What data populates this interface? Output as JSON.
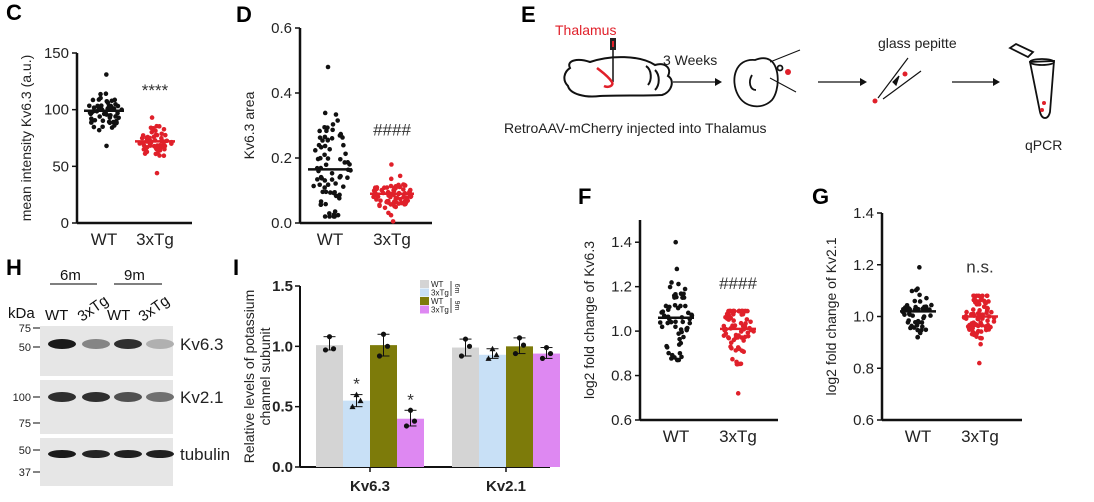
{
  "panels": {
    "C": {
      "label": "C"
    },
    "D": {
      "label": "D"
    },
    "E": {
      "label": "E"
    },
    "F": {
      "label": "F"
    },
    "G": {
      "label": "G"
    },
    "H": {
      "label": "H"
    },
    "I": {
      "label": "I"
    }
  },
  "schematic": {
    "injection_site": "Thalamus",
    "delay": "3 Weeks",
    "caption": "RetroAAV-mCherry injected into Thalamus",
    "pipette_label": "glass pepitte",
    "endpoint_label": "qPCR",
    "colors": {
      "accent": "#e0202a",
      "line": "#111111"
    }
  },
  "western_blot": {
    "unit_label": "kDa",
    "age_groups": [
      "6m",
      "9m"
    ],
    "lanes": [
      "WT",
      "3xTg",
      "WT",
      "3xTg"
    ],
    "blots": [
      {
        "name": "Kv6.3",
        "markers": [
          "75",
          "50"
        ],
        "intensity": [
          0.95,
          0.45,
          0.85,
          0.25
        ]
      },
      {
        "name": "Kv2.1",
        "markers": [
          "100",
          "75"
        ],
        "intensity": [
          0.85,
          0.85,
          0.7,
          0.55
        ]
      },
      {
        "name": "tubulin",
        "markers": [
          "50",
          "37"
        ],
        "intensity": [
          0.95,
          0.9,
          0.92,
          0.92
        ]
      }
    ]
  },
  "chart_data": [
    {
      "id": "C",
      "type": "scatter",
      "title": "",
      "xlabel": "",
      "ylabel": "mean intensity Kv6.3 (a.u.)",
      "categories": [
        "WT",
        "3xTg"
      ],
      "ylim": [
        0,
        150
      ],
      "yticks": [
        "0",
        "50",
        "100",
        "150"
      ],
      "annotation": "****",
      "series": [
        {
          "name": "WT",
          "color": "#111111",
          "mean": 99,
          "min": 68,
          "max": 131,
          "n": 60
        },
        {
          "name": "3xTg",
          "color": "#e0202a",
          "mean": 72,
          "min": 44,
          "max": 93,
          "n": 60
        }
      ]
    },
    {
      "id": "D",
      "type": "scatter",
      "ylabel": "Kv6.3 area",
      "categories": [
        "WT",
        "3xTg"
      ],
      "ylim": [
        0,
        0.6
      ],
      "yticks": [
        "0.0",
        "0.2",
        "0.4",
        "0.6"
      ],
      "annotation": "####",
      "series": [
        {
          "name": "WT",
          "color": "#111111",
          "mean": 0.165,
          "min": 0.02,
          "max": 0.48,
          "n": 75
        },
        {
          "name": "3xTg",
          "color": "#e0202a",
          "mean": 0.09,
          "min": 0.005,
          "max": 0.18,
          "n": 75
        }
      ]
    },
    {
      "id": "F",
      "type": "scatter",
      "ylabel": "log2 fold change of Kv6.3",
      "categories": [
        "WT",
        "3xTg"
      ],
      "ylim": [
        0.6,
        1.5
      ],
      "yticks": [
        "0.6",
        "0.8",
        "1.0",
        "1.2",
        "1.4"
      ],
      "annotation": "####",
      "series": [
        {
          "name": "WT",
          "color": "#111111",
          "mean": 1.06,
          "min": 0.87,
          "max": 1.4,
          "n": 60
        },
        {
          "name": "3xTg",
          "color": "#e0202a",
          "mean": 1.01,
          "min": 0.72,
          "max": 1.09,
          "n": 80
        }
      ]
    },
    {
      "id": "G",
      "type": "scatter",
      "ylabel": "log2 fold change of Kv2.1",
      "categories": [
        "WT",
        "3xTg"
      ],
      "ylim": [
        0.6,
        1.4
      ],
      "yticks": [
        "0.6",
        "0.8",
        "1.0",
        "1.2",
        "1.4"
      ],
      "annotation": "n.s.",
      "series": [
        {
          "name": "WT",
          "color": "#111111",
          "mean": 1.02,
          "min": 0.92,
          "max": 1.19,
          "n": 50
        },
        {
          "name": "3xTg",
          "color": "#e0202a",
          "mean": 1.0,
          "min": 0.82,
          "max": 1.08,
          "n": 80
        }
      ]
    },
    {
      "id": "I",
      "type": "bar",
      "ylabel": "Relative levels of potassium channel subunit",
      "ylabel_lines": [
        "Relative levels of potassium",
        "channel subunit"
      ],
      "categories": [
        "Kv6.3",
        "Kv2.1"
      ],
      "ylim": [
        0,
        1.5
      ],
      "yticks": [
        "0.0",
        "0.5",
        "1.0",
        "1.5"
      ],
      "legend": {
        "placement": "top-center",
        "groups": [
          {
            "age": "6m",
            "entries": [
              "WT",
              "3xTg"
            ]
          },
          {
            "age": "9m",
            "entries": [
              "WT",
              "3xTg"
            ]
          }
        ]
      },
      "series": [
        {
          "name": "WT 6m",
          "color": "#d4d4d4",
          "marker": "circle",
          "values": [
            1.01,
            0.99
          ],
          "points": [
            [
              0.97,
              0.98,
              1.08
            ],
            [
              0.92,
              1.0,
              1.06
            ]
          ]
        },
        {
          "name": "3xTg 6m",
          "color": "#c8e0f6",
          "marker": "triangle",
          "values": [
            0.55,
            0.93
          ],
          "points": [
            [
              0.5,
              0.55,
              0.6
            ],
            [
              0.9,
              0.93,
              0.98
            ]
          ],
          "significance": [
            "*",
            ""
          ]
        },
        {
          "name": "WT 9m",
          "color": "#7d7b0a",
          "marker": "circle",
          "values": [
            1.01,
            1.0
          ],
          "points": [
            [
              0.92,
              1.0,
              1.1
            ],
            [
              0.94,
              1.01,
              1.07
            ]
          ]
        },
        {
          "name": "3xTg 9m",
          "color": "#de88f2",
          "marker": "circle",
          "values": [
            0.4,
            0.94
          ],
          "points": [
            [
              0.34,
              0.38,
              0.47
            ],
            [
              0.9,
              0.94,
              0.99
            ]
          ],
          "significance": [
            "*",
            ""
          ]
        }
      ]
    }
  ]
}
